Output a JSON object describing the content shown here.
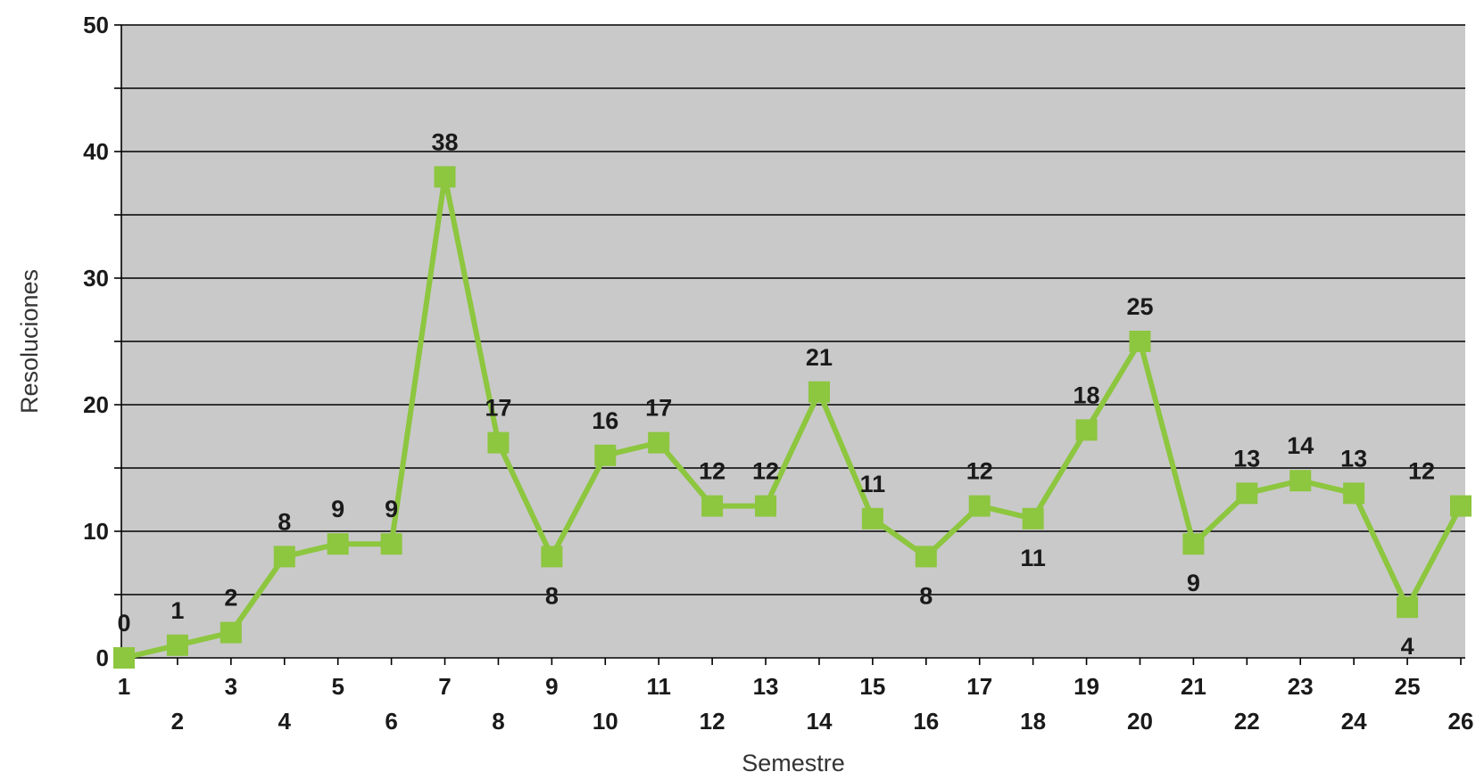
{
  "chart_data": {
    "type": "line",
    "xlabel": "Semestre",
    "ylabel": "Resoluciones",
    "categories": [
      "1",
      "2",
      "3",
      "4",
      "5",
      "6",
      "7",
      "8",
      "9",
      "10",
      "11",
      "12",
      "13",
      "14",
      "15",
      "16",
      "17",
      "18",
      "19",
      "20",
      "21",
      "22",
      "23",
      "24",
      "25",
      "26"
    ],
    "series": [
      {
        "values": [
          0,
          1,
          2,
          8,
          9,
          9,
          38,
          17,
          8,
          16,
          17,
          12,
          12,
          21,
          11,
          8,
          12,
          11,
          18,
          25,
          9,
          13,
          14,
          13,
          4,
          12
        ]
      }
    ],
    "ylim": [
      0,
      50
    ],
    "yticks": [
      0,
      10,
      20,
      30,
      40,
      50
    ],
    "grid": true,
    "colors": {
      "line": "#8dc63f",
      "marker": "#8dc63f",
      "plot_background": "#c9c9c9",
      "gridline": "#000000"
    }
  }
}
